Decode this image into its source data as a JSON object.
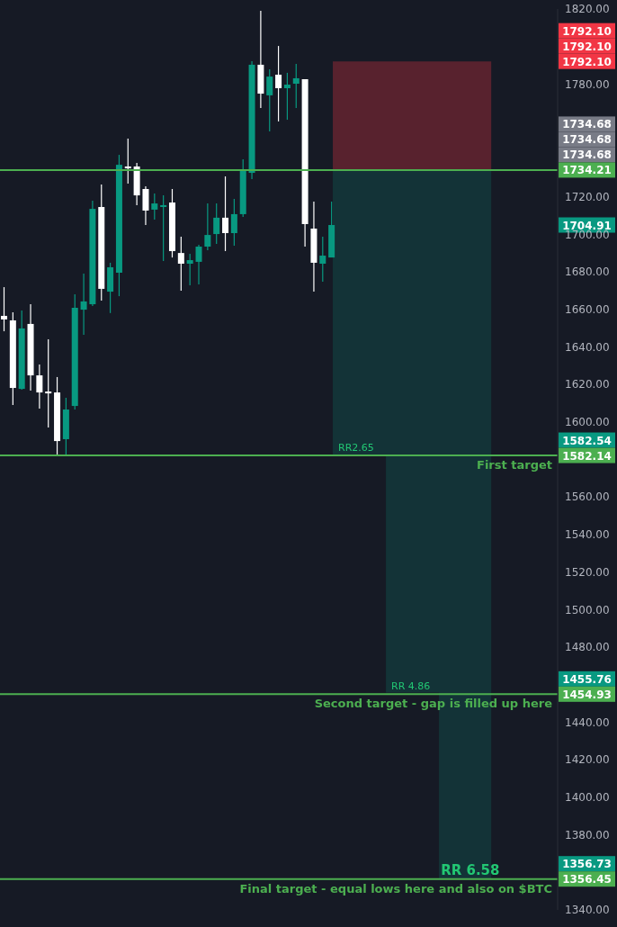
{
  "chart_data": {
    "type": "candlestick",
    "categories": [
      null,
      null,
      null,
      null,
      null,
      null,
      null,
      null,
      null,
      null,
      null,
      null,
      null,
      null,
      null,
      null,
      null,
      null,
      null,
      null,
      null,
      null,
      null,
      null,
      null,
      null,
      null,
      null,
      null,
      null,
      null,
      null,
      null,
      null,
      null,
      null,
      null,
      null,
      null,
      null,
      null,
      null,
      null,
      null,
      null,
      null,
      null,
      null,
      null,
      null,
      null,
      null,
      null,
      null,
      null,
      null,
      null,
      null,
      null,
      null,
      null,
      null,
      null
    ],
    "ohlc": [
      [
        1656.5,
        1671.8,
        1648.3,
        1654.6
      ],
      [
        1654.1,
        1658.4,
        1609.0,
        1618.1
      ],
      [
        1617.6,
        1659.4,
        1617.2,
        1649.8
      ],
      [
        1652.2,
        1662.7,
        1616.7,
        1624.8
      ],
      [
        1624.8,
        1630.6,
        1607.1,
        1615.7
      ],
      [
        1616.2,
        1644.0,
        1597.0,
        1615.2
      ],
      [
        1615.7,
        1623.9,
        1581.7,
        1589.8
      ],
      [
        1590.8,
        1612.8,
        1581.7,
        1606.6
      ],
      [
        1608.5,
        1668.0,
        1606.6,
        1660.8
      ],
      [
        1659.8,
        1679.0,
        1646.4,
        1664.2
      ],
      [
        1662.7,
        1717.9,
        1661.8,
        1713.5
      ],
      [
        1714.5,
        1726.5,
        1664.6,
        1670.9
      ],
      [
        1669.4,
        1684.8,
        1658.0,
        1682.4
      ],
      [
        1679.5,
        1742.3,
        1667.0,
        1737.0
      ],
      [
        1736.1,
        1751.0,
        1727.0,
        1735.1
      ],
      [
        1736.1,
        1738.0,
        1715.5,
        1720.7
      ],
      [
        1724.1,
        1725.5,
        1704.9,
        1712.6
      ],
      [
        1713.1,
        1721.7,
        1707.8,
        1716.4
      ],
      [
        1714.5,
        1720.7,
        1685.7,
        1715.5
      ],
      [
        1716.9,
        1724.1,
        1687.6,
        1691.0
      ],
      [
        1690.0,
        1698.7,
        1669.9,
        1684.3
      ],
      [
        1684.3,
        1689.6,
        1672.8,
        1686.2
      ],
      [
        1685.3,
        1694.4,
        1673.3,
        1693.4
      ],
      [
        1693.4,
        1716.4,
        1691.5,
        1699.6
      ],
      [
        1700.1,
        1716.4,
        1694.8,
        1708.8
      ],
      [
        1708.8,
        1730.8,
        1691.0,
        1700.6
      ],
      [
        1700.6,
        1718.8,
        1693.9,
        1710.7
      ],
      [
        1710.7,
        1739.9,
        1709.2,
        1734.2
      ],
      [
        1732.7,
        1792.2,
        1729.4,
        1790.3
      ],
      [
        1790.3,
        1819.0,
        1767.3,
        1774.9
      ],
      [
        1774.0,
        1787.9,
        1754.8,
        1784.0
      ],
      [
        1785.0,
        1800.3,
        1760.1,
        1777.8
      ],
      [
        1777.8,
        1786.0,
        1761.0,
        1779.7
      ],
      [
        1780.2,
        1790.7,
        1767.3,
        1783.1
      ],
      [
        1782.6,
        1782.6,
        1693.4,
        1705.4
      ],
      [
        1703.0,
        1717.4,
        1669.4,
        1684.8
      ],
      [
        1684.3,
        1698.7,
        1674.7,
        1688.6
      ],
      [
        1687.6,
        1717.4,
        1687.6,
        1704.91
      ],
      null,
      null,
      null,
      null,
      null,
      null,
      null,
      null,
      null,
      null,
      null,
      null,
      null,
      null,
      null,
      null,
      null,
      null,
      null,
      null,
      null,
      null,
      null,
      null,
      null
    ],
    "colors": [
      "#ffffff",
      "#ffffff",
      "#089981",
      "#ffffff",
      "#ffffff",
      "#ffffff",
      "#ffffff",
      "#089981",
      "#089981",
      "#089981",
      "#089981",
      "#ffffff",
      "#089981",
      "#089981",
      "#ffffff",
      "#ffffff",
      "#ffffff",
      "#089981",
      "#089981",
      "#ffffff",
      "#ffffff",
      "#089981",
      "#089981",
      "#089981",
      "#089981",
      "#ffffff",
      "#089981",
      "#089981",
      "#089981",
      "#ffffff",
      "#089981",
      "#ffffff",
      "#089981",
      "#089981",
      "#ffffff",
      "#ffffff",
      "#089981",
      "#089981",
      null,
      null,
      null,
      null,
      null,
      null,
      null,
      null,
      null,
      null,
      null,
      null,
      null,
      null,
      null,
      null,
      null,
      null,
      null,
      null,
      null,
      null,
      null,
      null,
      null
    ],
    "ylim": [
      1340,
      1820
    ],
    "yticks": [
      {
        "value": 1340,
        "label": "1340.00"
      },
      {
        "value": 1380,
        "label": "1380.00"
      },
      {
        "value": 1400,
        "label": "1400.00"
      },
      {
        "value": 1420,
        "label": "1420.00"
      },
      {
        "value": 1440,
        "label": "1440.00"
      },
      {
        "value": 1480,
        "label": "1480.00"
      },
      {
        "value": 1500,
        "label": "1500.00"
      },
      {
        "value": 1520,
        "label": "1520.00"
      },
      {
        "value": 1540,
        "label": "1540.00"
      },
      {
        "value": 1560,
        "label": "1560.00"
      },
      {
        "value": 1600,
        "label": "1600.00"
      },
      {
        "value": 1620,
        "label": "1620.00"
      },
      {
        "value": 1640,
        "label": "1640.00"
      },
      {
        "value": 1660,
        "label": "1660.00"
      },
      {
        "value": 1680,
        "label": "1680.00"
      },
      {
        "value": 1700,
        "label": "1700.00"
      },
      {
        "value": 1720,
        "label": "1720.00"
      },
      {
        "value": 1780,
        "label": "1780.00"
      },
      {
        "value": 1820,
        "label": "1820.00"
      }
    ],
    "tick_labels": "y",
    "bands": [
      {
        "axis": "y",
        "from": 1734.68,
        "to": 1792.1,
        "color": "#f23645"
      },
      {
        "axis": "y",
        "from": 1582.54,
        "to": 1734.68,
        "label": "RR2.65",
        "color": "#089981"
      },
      {
        "axis": "y",
        "from": 1455.76,
        "to": 1582.54,
        "label": "RR 4.86",
        "color": "#089981"
      },
      {
        "axis": "y",
        "from": 1356.73,
        "to": 1455.76,
        "label": "RR 6.58",
        "color": "#089981"
      }
    ],
    "ref_lines": [
      {
        "axis": "y",
        "value": 1734.21,
        "label": "1734.21",
        "color": "#4caf50",
        "line_style": "solid"
      },
      {
        "axis": "y",
        "value": 1582.14,
        "label": "1582.14",
        "color": "#4caf50",
        "line_style": "solid"
      },
      {
        "axis": "y",
        "value": 1454.93,
        "label": "1454.93",
        "color": "#4caf50",
        "line_style": "solid"
      },
      {
        "axis": "y",
        "value": 1356.45,
        "label": "1356.45",
        "color": "#4caf50",
        "line_style": "solid"
      }
    ],
    "annotations": [
      "1792.10",
      "1792.10",
      "1792.10",
      "1734.68",
      "1734.68",
      "1734.68",
      "1704.91",
      "1582.54",
      "1455.76",
      "1356.73",
      "First target",
      "Second target - gap is filled up here",
      "Final target - equal lows here and also on $BTC"
    ]
  }
}
